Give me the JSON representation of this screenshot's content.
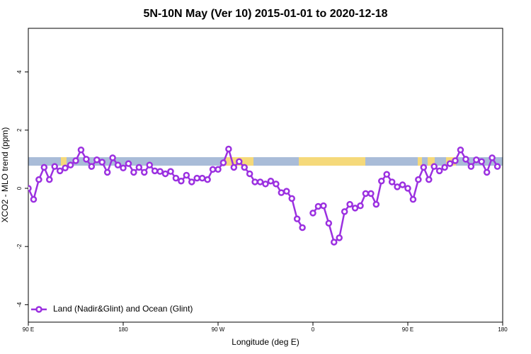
{
  "chart_data": {
    "type": "line",
    "title": "5N-10N May (Ver 10)   2015-01-01 to 2020-12-18",
    "x_label": "Longitude (deg E)",
    "y_label": "XCO2 - MLO trend (ppm)",
    "xlim": [
      90,
      540
    ],
    "ylim": [
      -4.6,
      5.5
    ],
    "xticks": [
      {
        "value": 90,
        "label": "90 E"
      },
      180,
      {
        "value": 270,
        "label": "90 W"
      },
      {
        "value": 360,
        "label": "0"
      },
      {
        "value": 450,
        "label": "90 E"
      },
      {
        "value": 540,
        "label": "180"
      }
    ],
    "yticks": [
      -4,
      -2,
      0,
      2,
      4
    ],
    "legend": "bottom-left",
    "x": [
      90,
      95,
      100,
      105,
      110,
      115,
      120,
      125,
      130,
      135,
      140,
      145,
      150,
      155,
      160,
      165,
      170,
      175,
      180,
      185,
      190,
      195,
      200,
      205,
      210,
      215,
      220,
      225,
      230,
      235,
      240,
      245,
      250,
      255,
      260,
      265,
      270,
      275,
      280,
      285,
      290,
      295,
      300,
      305,
      310,
      315,
      320,
      325,
      330,
      335,
      340,
      345,
      350,
      355,
      360,
      365,
      370,
      375,
      380,
      385,
      390,
      395,
      400,
      405,
      410,
      415,
      420,
      425,
      430,
      435,
      440,
      445,
      450,
      455,
      460,
      465,
      470,
      475,
      480,
      485,
      490,
      495,
      500,
      505,
      510,
      515,
      520,
      525,
      530,
      535
    ],
    "series": [
      {
        "name": "Land (Nadir&Glint) and Ocean (Glint)",
        "color": "#9b30e0",
        "values": [
          0.0,
          -0.38,
          0.3,
          0.72,
          0.3,
          0.75,
          0.6,
          0.7,
          0.8,
          0.95,
          1.32,
          1.0,
          0.75,
          0.98,
          0.9,
          0.55,
          1.05,
          0.8,
          0.7,
          0.85,
          0.55,
          0.72,
          0.55,
          0.8,
          0.6,
          0.58,
          0.5,
          0.58,
          0.35,
          0.25,
          0.45,
          0.22,
          0.35,
          0.35,
          0.3,
          0.65,
          0.65,
          0.88,
          1.35,
          0.72,
          0.92,
          0.72,
          0.5,
          0.22,
          0.22,
          0.15,
          0.25,
          0.15,
          -0.15,
          -0.1,
          -0.35,
          -1.05,
          -1.35,
          null,
          -0.85,
          -0.62,
          -0.6,
          -1.2,
          -1.85,
          -1.7,
          -0.8,
          -0.55,
          -0.68,
          -0.6,
          -0.18,
          -0.18,
          -0.55,
          0.25,
          0.48,
          0.22,
          0.05,
          0.12,
          0.0,
          -0.38,
          0.3,
          0.72,
          0.3,
          0.75,
          0.6,
          0.72,
          0.85,
          0.95,
          1.32,
          1.0,
          0.75,
          0.98,
          0.92,
          0.55,
          1.05,
          0.75
        ]
      }
    ]
  }
}
